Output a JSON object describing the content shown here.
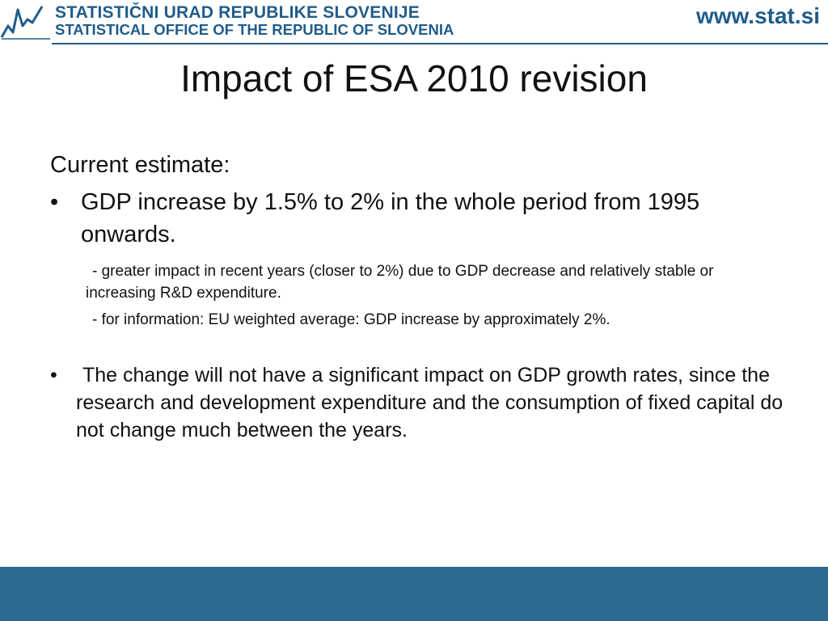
{
  "header": {
    "org_name_sl": "STATISTIČNI URAD REPUBLIKE SLOVENIJE",
    "org_name_en": "STATISTICAL OFFICE  OF THE REPUBLIC OF SLOVENIA",
    "website": "www.stat.si",
    "logo_icon": "chart-line-logo-icon",
    "brand_color": "#1f5c8a"
  },
  "slide": {
    "title": "Impact of ESA 2010 revision",
    "lead": "Current estimate:",
    "bullet_mark": "•",
    "bullet1": "GDP increase by 1.5% to 2% in the whole period from 1995 onwards.",
    "sub1": "- greater impact in recent years (closer to 2%) due to GDP decrease and relatively stable or increasing R&D expenditure.",
    "sub2": "- for information: EU weighted average: GDP increase by approximately 2%.",
    "bullet2": "The change will not have a significant impact on GDP growth rates, since the research and development expenditure and the consumption of fixed capital do not change much between the years."
  },
  "footer": {
    "band_color": "#2c6b90"
  }
}
